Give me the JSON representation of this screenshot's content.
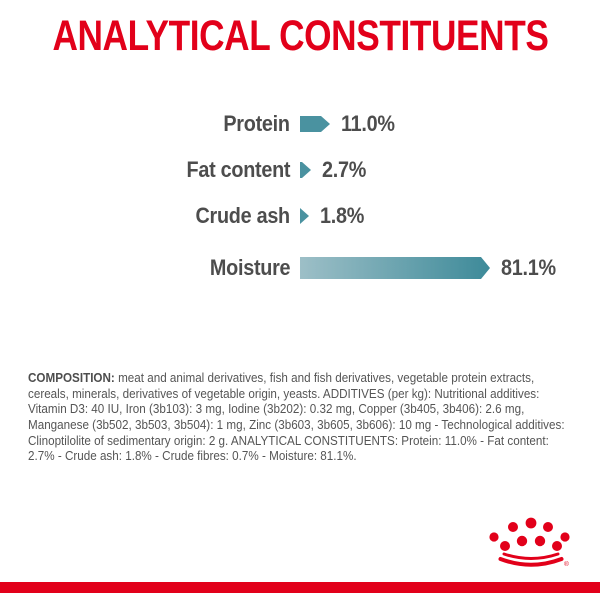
{
  "title": "ANALYTICAL CONSTITUENTS",
  "colors": {
    "brand_red": "#E2001A",
    "bar_teal_dark": "#3D8A99",
    "bar_teal_light": "#9DBFC7",
    "text_gray": "#4D4D4D"
  },
  "chart_data": {
    "type": "bar",
    "orientation": "horizontal",
    "title": "ANALYTICAL CONSTITUENTS",
    "categories": [
      "Protein",
      "Fat content",
      "Crude ash",
      "Moisture"
    ],
    "values": [
      11.0,
      2.7,
      1.8,
      81.1
    ],
    "value_labels": [
      "11.0%",
      "2.7%",
      "1.8%",
      "81.1%"
    ],
    "xlim": [
      0,
      85
    ],
    "grid": false,
    "legend": false,
    "bar_style": "arrow-tipped, teal gradient light-to-dark left-to-right, value label right of bar, category label left of bar"
  },
  "composition": {
    "label": "COMPOSITION:",
    "text": " meat and animal derivatives, fish and fish derivatives, vegetable protein extracts, cereals, minerals, derivatives of vegetable origin, yeasts. ADDITIVES (per kg): Nutritional additives: Vitamin D3: 40 IU, Iron (3b103): 3 mg, Iodine (3b202): 0.32 mg, Copper (3b405, 3b406): 2.6 mg, Manganese (3b502, 3b503, 3b504): 1 mg, Zinc (3b603, 3b605, 3b606): 10 mg - Technological additives: Clinoptilolite of sedimentary origin: 2 g. ANALYTICAL CONSTITUENTS: Protein: 11.0% - Fat content: 2.7% - Crude ash: 1.8% - Crude fibres: 0.7% - Moisture: 81.1%."
  },
  "logo": {
    "name": "royal-canin-crown",
    "registered_mark": "®"
  }
}
